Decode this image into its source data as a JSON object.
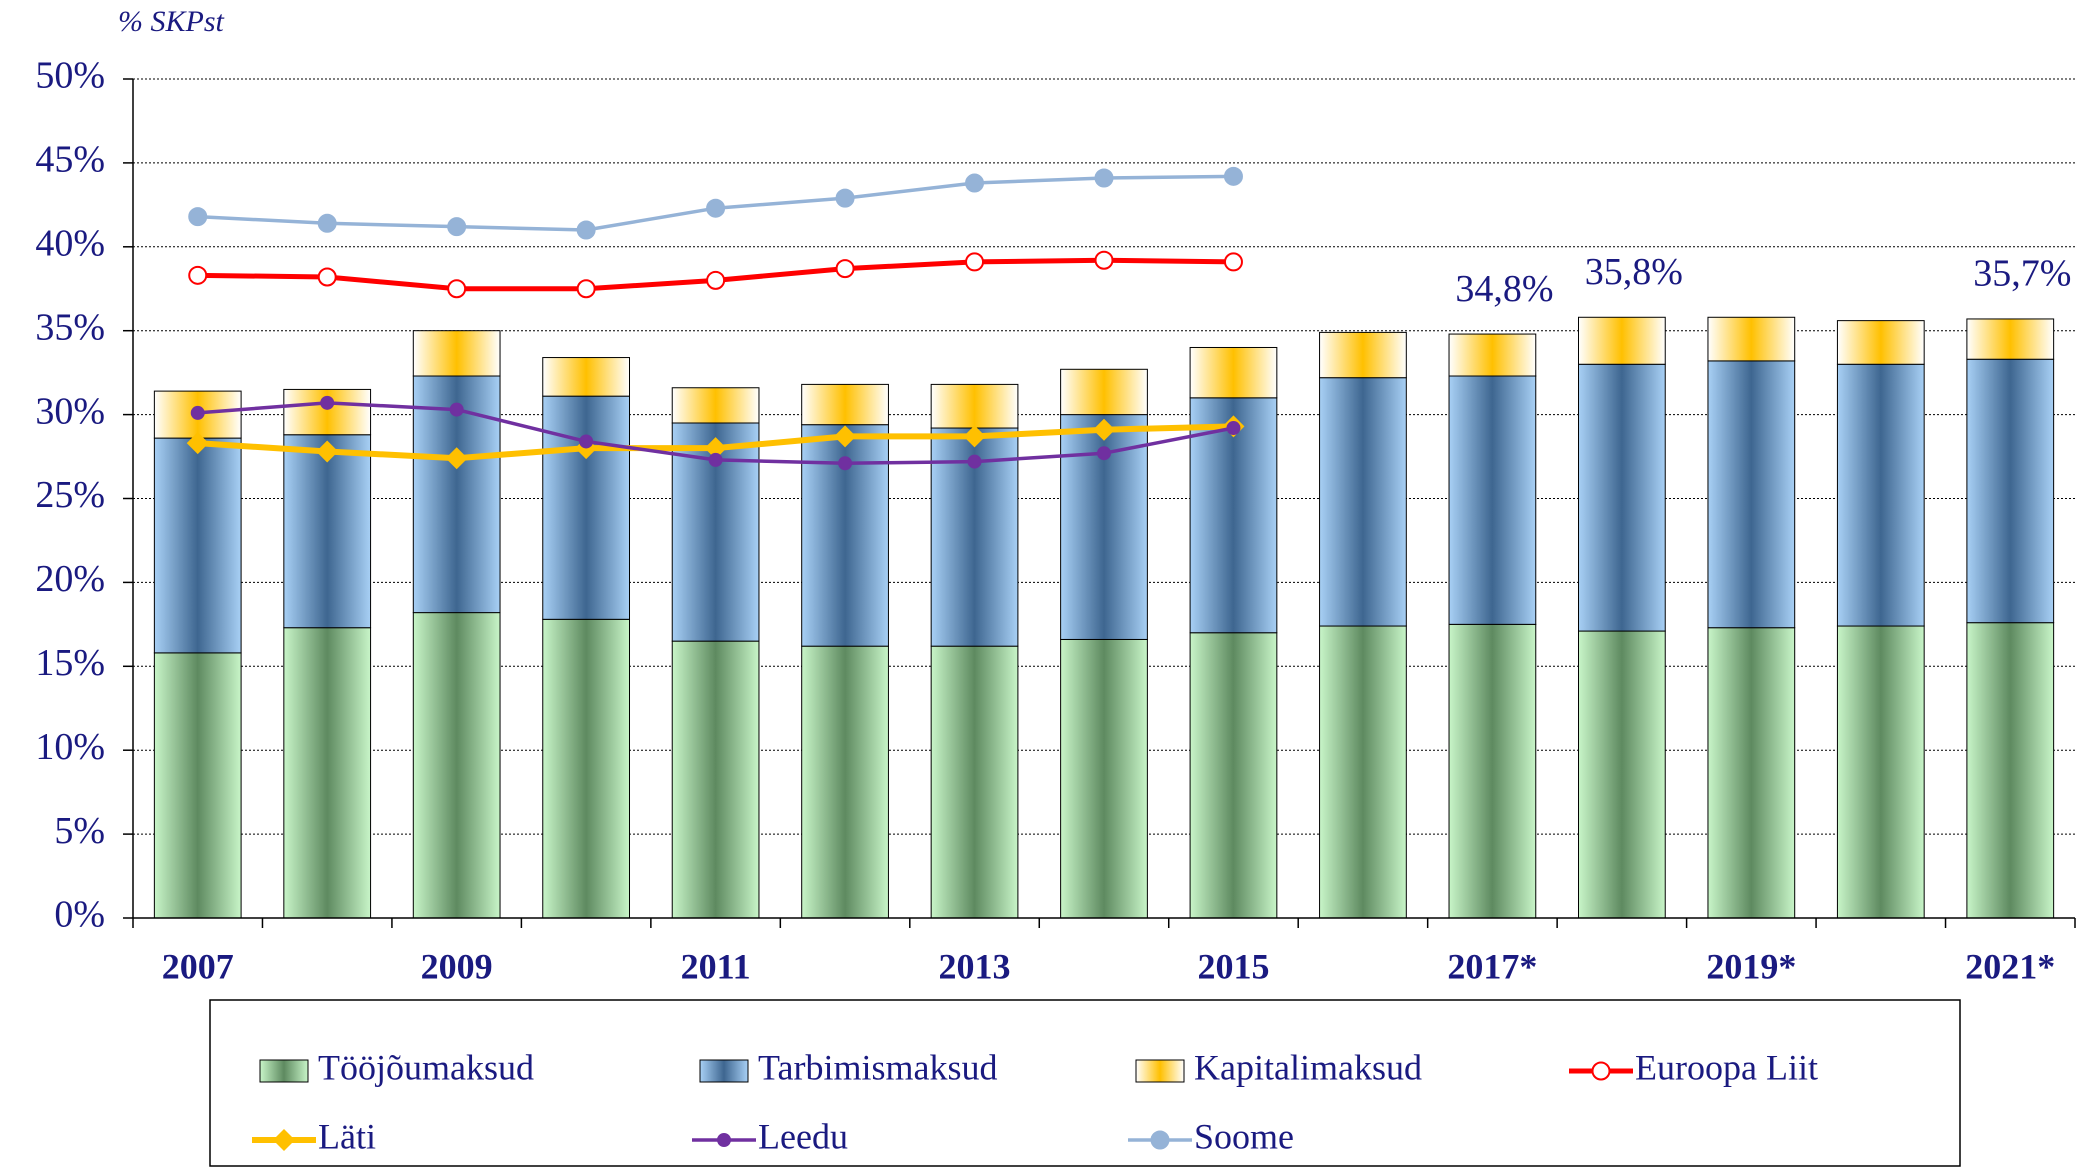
{
  "chart_data": {
    "type": "stacked-bar-line",
    "y_label": "% SKPst",
    "categories": [
      "2007",
      null,
      "2009",
      null,
      "2011",
      null,
      "2013",
      null,
      "2015",
      null,
      "2017*",
      null,
      "2019*",
      null,
      "2021*"
    ],
    "ylim": [
      0,
      50
    ],
    "yticks": [
      {
        "value": 0,
        "label": "0%"
      },
      {
        "value": 5,
        "label": "5%"
      },
      {
        "value": 10,
        "label": "10%"
      },
      {
        "value": 15,
        "label": "15%"
      },
      {
        "value": 20,
        "label": "20%"
      },
      {
        "value": 25,
        "label": "25%"
      },
      {
        "value": 30,
        "label": "30%"
      },
      {
        "value": 35,
        "label": "35%"
      },
      {
        "value": 40,
        "label": "40%"
      },
      {
        "value": 45,
        "label": "45%"
      },
      {
        "value": 50,
        "label": "50%"
      }
    ],
    "grid": true,
    "series": [
      {
        "name": "Tööjõumaksud",
        "kind": "bar",
        "color": "#5e8a60",
        "edge": "#c8f5c8",
        "values": [
          15.8,
          17.3,
          18.2,
          17.8,
          16.5,
          16.2,
          16.2,
          16.6,
          17.0,
          17.4,
          17.5,
          17.1,
          17.3,
          17.4,
          17.6
        ]
      },
      {
        "name": "Tarbimismaksud",
        "kind": "bar",
        "color": "#3e6690",
        "edge": "#a8d0f5",
        "values": [
          12.8,
          11.5,
          14.1,
          13.3,
          13.0,
          13.2,
          13.0,
          13.4,
          14.0,
          14.8,
          14.8,
          15.9,
          15.9,
          15.6,
          15.7
        ]
      },
      {
        "name": "Kapitalimaksud",
        "kind": "bar",
        "color": "#ffc000",
        "edge": "#ffffff",
        "values": [
          2.8,
          2.7,
          2.7,
          2.3,
          2.1,
          2.4,
          2.6,
          2.7,
          3.0,
          2.7,
          2.5,
          2.8,
          2.6,
          2.6,
          2.4
        ]
      },
      {
        "name": "Euroopa Liit",
        "kind": "line",
        "marker": "circle-open",
        "color": "#ff0000",
        "values": [
          38.3,
          38.2,
          37.5,
          37.5,
          38.0,
          38.7,
          39.1,
          39.2,
          39.1,
          null,
          null,
          null,
          null,
          null,
          null
        ]
      },
      {
        "name": "Läti",
        "kind": "line",
        "marker": "diamond",
        "color": "#ffc000",
        "values": [
          28.3,
          27.8,
          27.4,
          28.0,
          28.0,
          28.7,
          28.7,
          29.1,
          29.3,
          null,
          null,
          null,
          null,
          null,
          null
        ]
      },
      {
        "name": "Leedu",
        "kind": "line",
        "marker": "dot",
        "color": "#7030a0",
        "values": [
          30.1,
          30.7,
          30.3,
          28.4,
          27.3,
          27.1,
          27.2,
          27.7,
          29.2,
          null,
          null,
          null,
          null,
          null,
          null
        ]
      },
      {
        "name": "Soome",
        "kind": "line",
        "marker": "circle",
        "color": "#95b3d7",
        "values": [
          41.8,
          41.4,
          41.2,
          41.0,
          42.3,
          42.9,
          43.8,
          44.1,
          44.2,
          null,
          null,
          null,
          null,
          null,
          null
        ]
      }
    ],
    "total_values": [
      null,
      null,
      null,
      null,
      null,
      null,
      null,
      null,
      null,
      null,
      34.8,
      35.8,
      null,
      null,
      35.7
    ],
    "total_labels": [
      null,
      null,
      null,
      null,
      null,
      null,
      null,
      null,
      null,
      null,
      "34,8%",
      "35,8%",
      null,
      null,
      "35,7%"
    ]
  }
}
